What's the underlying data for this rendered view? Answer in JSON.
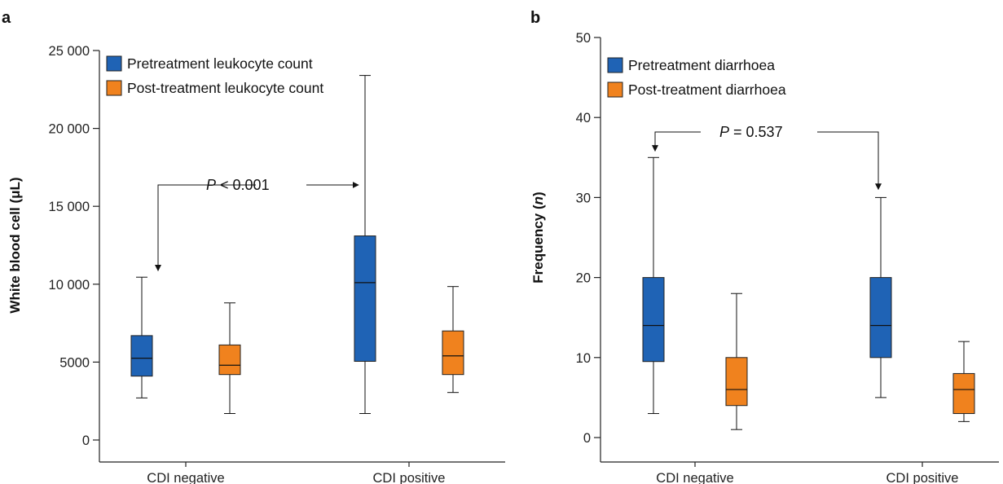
{
  "colors": {
    "pre": "#1f63b5",
    "post": "#f0821e",
    "axis": "#222222"
  },
  "chart_data": [
    {
      "type": "box",
      "panel_label": "a",
      "ylabel": "White blood cell (μL)",
      "ylim": [
        0,
        25000
      ],
      "yticks": [
        0,
        5000,
        10000,
        15000,
        20000,
        25000
      ],
      "ytick_labels": [
        "0",
        "5000",
        "10 000",
        "15 000",
        "20 000",
        "25 000"
      ],
      "categories": [
        "CDI negative",
        "CDI positive"
      ],
      "series": [
        {
          "name": "Pretreatment leukocyte count",
          "color": "#1f63b5",
          "boxes": [
            {
              "min": 2700,
              "q1": 4100,
              "median": 5250,
              "q3": 6700,
              "max": 10450
            },
            {
              "min": 1700,
              "q1": 5050,
              "median": 10100,
              "q3": 13100,
              "max": 23400
            }
          ]
        },
        {
          "name": "Post-treatment leukocyte count",
          "color": "#f0821e",
          "boxes": [
            {
              "min": 1700,
              "q1": 4200,
              "median": 4800,
              "q3": 6100,
              "max": 8800
            },
            {
              "min": 3050,
              "q1": 4200,
              "median": 5400,
              "q3": 7000,
              "max": 9850
            }
          ]
        }
      ],
      "annotation": {
        "text": " < 0.001",
        "italic": "P"
      }
    },
    {
      "type": "box",
      "panel_label": "b",
      "ylabel": "Frequency (n)",
      "ylim": [
        0,
        50
      ],
      "yticks": [
        0,
        10,
        20,
        30,
        40,
        50
      ],
      "ytick_labels": [
        "0",
        "10",
        "20",
        "30",
        "40",
        "50"
      ],
      "categories": [
        "CDI negative",
        "CDI positive"
      ],
      "series": [
        {
          "name": "Pretreatment diarrhoea",
          "color": "#1f63b5",
          "boxes": [
            {
              "min": 3,
              "q1": 9.5,
              "median": 14,
              "q3": 20,
              "max": 35
            },
            {
              "min": 5,
              "q1": 10,
              "median": 14,
              "q3": 20,
              "max": 30
            }
          ]
        },
        {
          "name": "Post-treatment diarrhoea",
          "color": "#f0821e",
          "boxes": [
            {
              "min": 1,
              "q1": 4,
              "median": 6,
              "q3": 10,
              "max": 18
            },
            {
              "min": 2,
              "q1": 3,
              "median": 6,
              "q3": 8,
              "max": 12
            }
          ]
        }
      ],
      "annotation": {
        "text": " = 0.537",
        "italic": "P"
      }
    }
  ]
}
